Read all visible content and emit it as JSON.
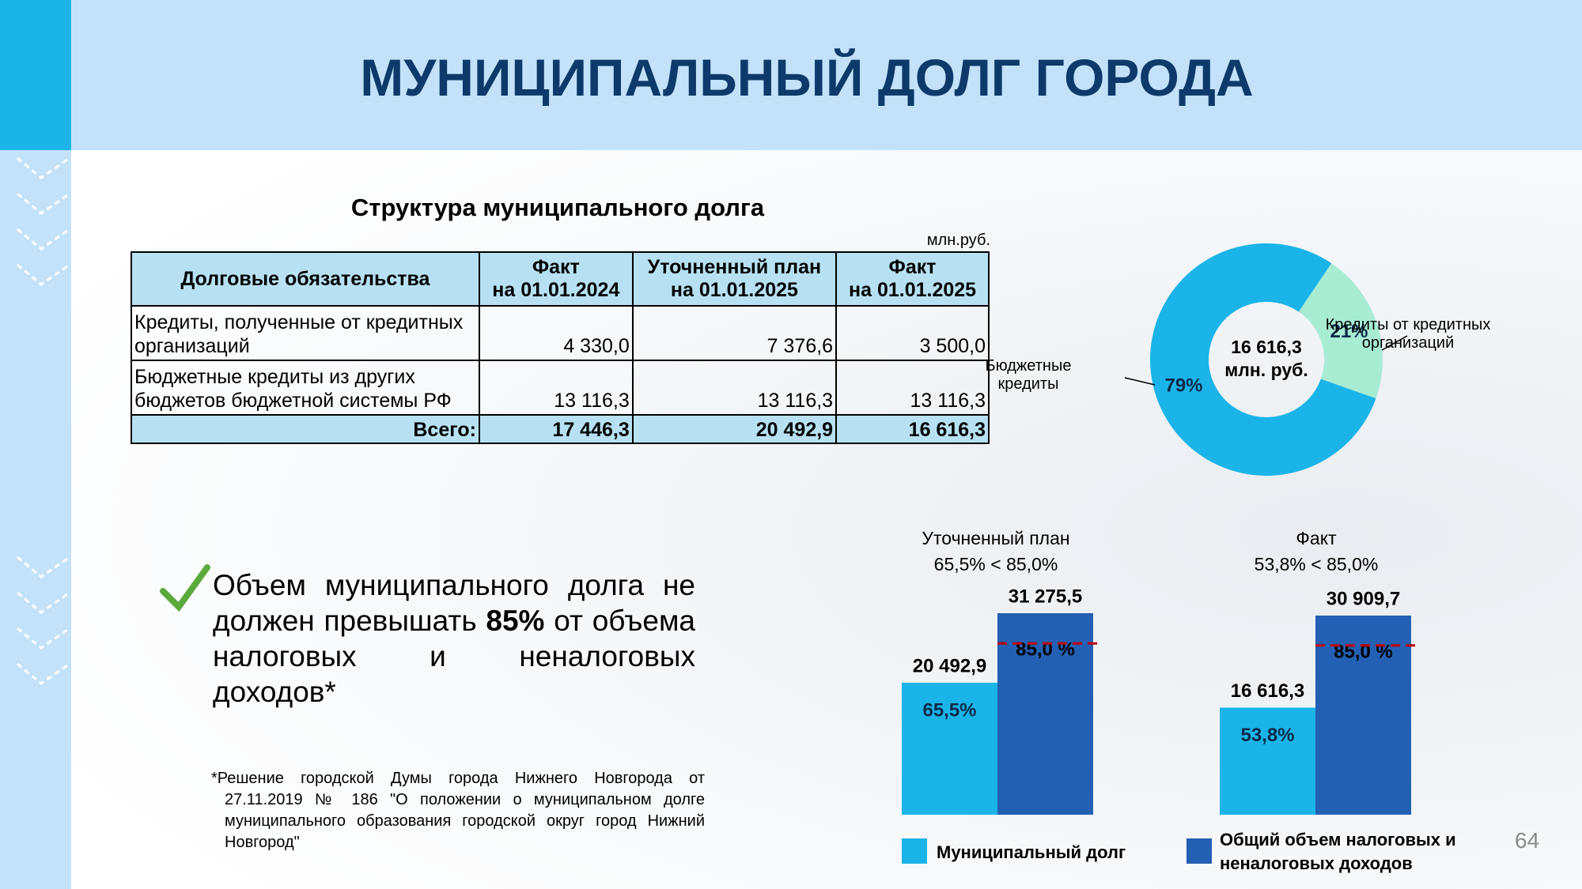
{
  "header": {
    "title": "МУНИЦИПАЛЬНЫЙ ДОЛГ ГОРОДА"
  },
  "table": {
    "title": "Структура муниципального долга",
    "unit": "млн.руб.",
    "header": [
      "Долговые обязательства",
      "Факт\nна 01.01.2024",
      "Уточненный план\nна 01.01.2025",
      "Факт\nна 01.01.2025"
    ],
    "rows": [
      [
        "Кредиты, полученные от кредитных организаций",
        "4 330,0",
        "7 376,6",
        "3 500,0"
      ],
      [
        "Бюджетные кредиты из других бюджетов бюджетной системы РФ",
        "13 116,3",
        "13 116,3",
        "13 116,3"
      ]
    ],
    "total": [
      "Всего:",
      "17 446,3",
      "20 492,9",
      "16 616,3"
    ]
  },
  "text": {
    "parts": [
      "Объем муниципального долга не должен превышать ",
      "85%",
      " от объема налоговых и неналоговых доходов*"
    ]
  },
  "footnote": "*Решение городской Думы города Нижнего Новгорода от 27.11.2019 № 186 \"О положении о муниципальном долге муниципального образования городской округ город Нижний Новгород\"",
  "page_number": "64",
  "chart_data": [
    {
      "type": "pie",
      "donut": true,
      "center_label": "16 616,3\nмлн. руб.",
      "categories": [
        "Кредиты от кредитных\nорганизаций",
        "Бюджетные\nкредиты"
      ],
      "values": [
        21,
        79
      ],
      "value_labels": [
        "21%",
        "79%"
      ],
      "colors": [
        "#a8ecd4",
        "#1ab4e8"
      ]
    },
    {
      "type": "bar",
      "categories": [
        "Уточненный план\n65,5% < 85,0%",
        "Факт\n53,8% < 85,0%"
      ],
      "series": [
        {
          "name": "Муниципальный долг",
          "color": "#1ab4e8",
          "values": [
            20492.9,
            16616.3
          ],
          "value_labels": [
            "20 492,9",
            "16 616,3"
          ],
          "inner_labels": [
            "65,5%",
            "53,8%"
          ]
        },
        {
          "name": "Общий объем налоговых  и\nненалоговых доходов",
          "color": "#2360b4",
          "values": [
            31275.5,
            30909.7
          ],
          "value_labels": [
            "31 275,5",
            "30 909,7"
          ],
          "inner_labels": [
            "85,0 %",
            "85,0 %"
          ]
        }
      ],
      "thresholds": [
        26584.2,
        26273.2
      ],
      "threshold_color": "#c00000"
    }
  ]
}
